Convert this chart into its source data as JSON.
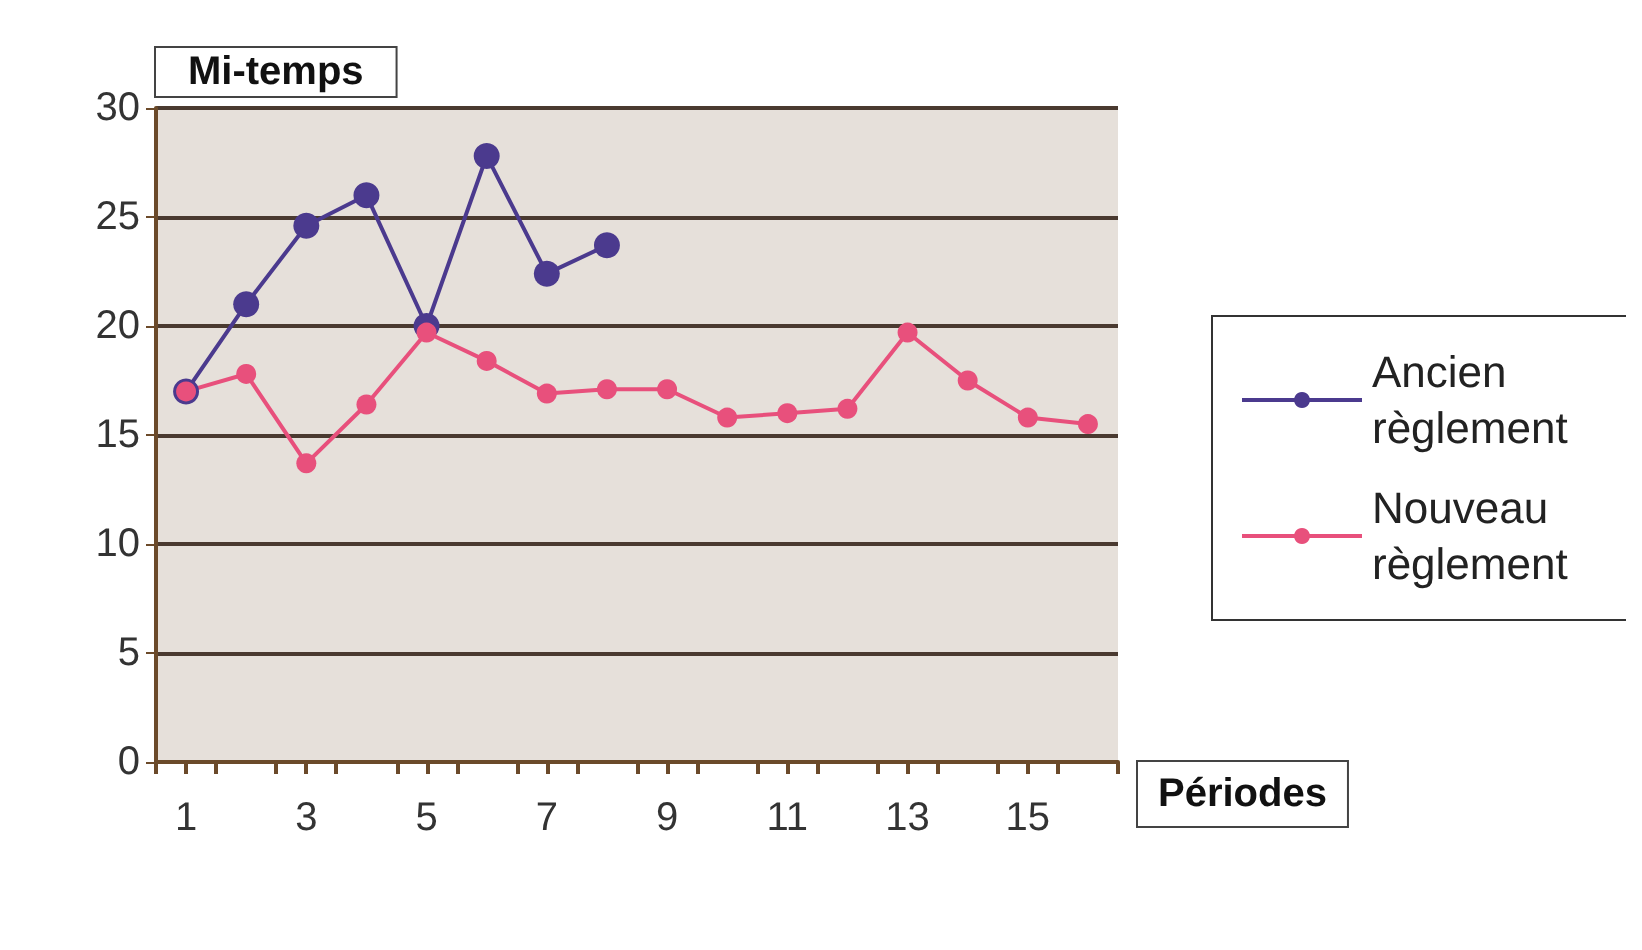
{
  "chart_data": {
    "type": "line",
    "xlabel": "Périodes",
    "ylabel": "Mi-temps",
    "x": [
      1,
      2,
      3,
      4,
      5,
      6,
      7,
      8,
      9,
      10,
      11,
      12,
      13,
      14,
      15,
      16
    ],
    "series": [
      {
        "name": "Ancien règlement",
        "color": "#4b3a8e",
        "values": [
          17,
          21,
          24.6,
          26,
          20,
          27.8,
          22.4,
          23.7,
          null,
          null,
          null,
          null,
          null,
          null,
          null,
          null
        ]
      },
      {
        "name": "Nouveau règlement",
        "color": "#e8507c",
        "values": [
          17,
          17.8,
          13.7,
          16.4,
          19.7,
          18.4,
          16.9,
          17.1,
          17.1,
          15.8,
          16,
          16.2,
          19.7,
          17.5,
          15.8,
          15.5
        ]
      }
    ],
    "xlim": [
      0.5,
      16.5
    ],
    "xticks": [
      1,
      3,
      5,
      7,
      9,
      11,
      13,
      15,
      {
        "value": 0.5,
        "label": null
      },
      {
        "value": 1.5,
        "label": null
      },
      {
        "value": 2.5,
        "label": null
      },
      {
        "value": 3.5,
        "label": null
      },
      {
        "value": 4.5,
        "label": null
      },
      {
        "value": 5.5,
        "label": null
      },
      {
        "value": 6.5,
        "label": null
      },
      {
        "value": 7.5,
        "label": null
      },
      {
        "value": 8.5,
        "label": null
      },
      {
        "value": 9.5,
        "label": null
      },
      {
        "value": 10.5,
        "label": null
      },
      {
        "value": 11.5,
        "label": null
      },
      {
        "value": 12.5,
        "label": null
      },
      {
        "value": 13.5,
        "label": null
      },
      {
        "value": 14.5,
        "label": null
      },
      {
        "value": 15.5,
        "label": null
      },
      {
        "value": 16.5,
        "label": null
      }
    ],
    "ylim": [
      0,
      30
    ],
    "yticks": [
      0,
      5,
      10,
      15,
      20,
      25,
      30
    ],
    "grid": "y",
    "legend": "right",
    "marker": "circle",
    "line_style": "solid"
  }
}
